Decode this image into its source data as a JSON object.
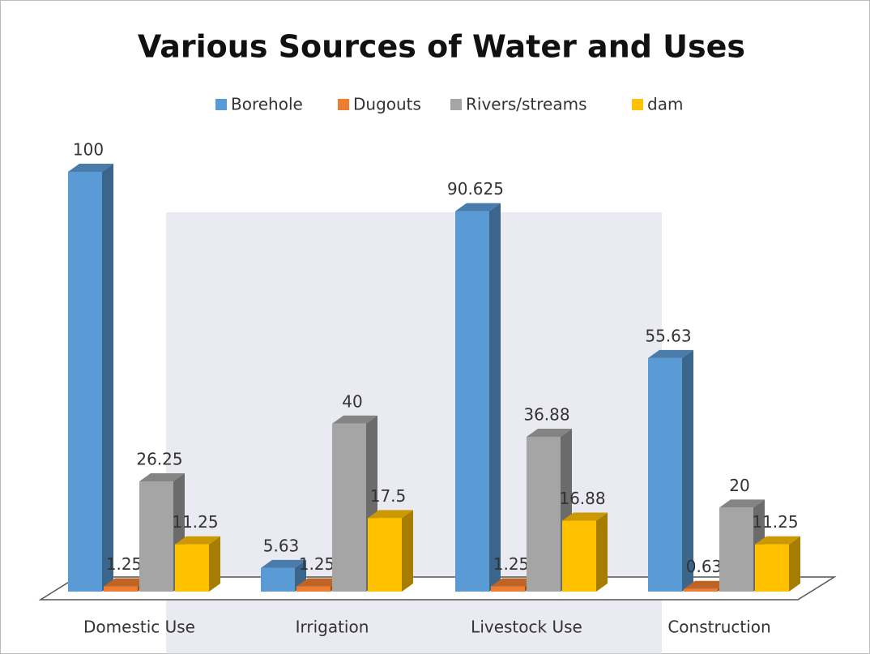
{
  "chart_data": {
    "type": "bar3d",
    "title": "Various Sources of Water  and Uses",
    "categories": [
      "Domestic Use",
      "Irrigation",
      "Livestock Use",
      "Construction"
    ],
    "series": [
      {
        "name": "Borehole",
        "color": "#5b9bd5",
        "values": [
          100,
          5.63,
          90.625,
          55.63
        ]
      },
      {
        "name": "Dugouts",
        "color": "#ed7d31",
        "values": [
          1.25,
          1.25,
          1.25,
          0.63
        ]
      },
      {
        "name": "Rivers/streams",
        "color": "#a5a5a5",
        "values": [
          26.25,
          40,
          36.88,
          20
        ]
      },
      {
        "name": "dam",
        "color": "#ffc000",
        "values": [
          11.25,
          17.5,
          16.88,
          11.25
        ]
      }
    ],
    "legend": "top"
  }
}
